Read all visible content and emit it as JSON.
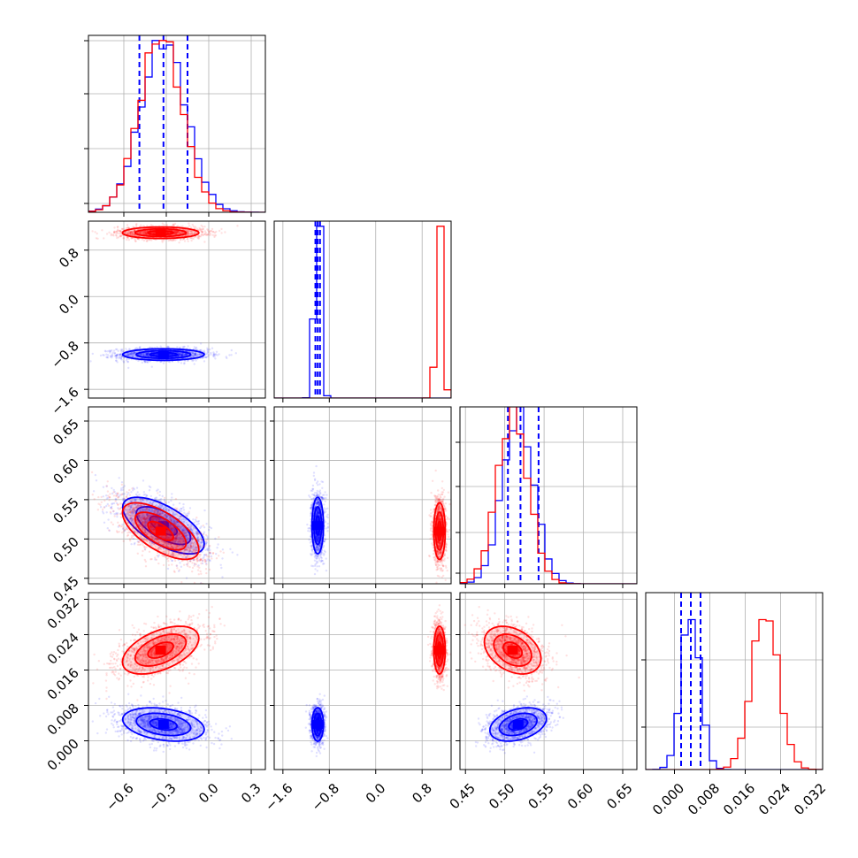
{
  "chart_data": {
    "type": "corner",
    "colors": {
      "blue": "#0000ff",
      "red": "#ff0000"
    },
    "params": [
      {
        "range": [
          -0.85,
          0.4
        ],
        "ticks": [
          -0.6,
          -0.3,
          0.0,
          0.3
        ],
        "tick_labels": [
          "−0.6",
          "−0.3",
          "0.0",
          "0.3"
        ]
      },
      {
        "range": [
          -1.75,
          1.3
        ],
        "ticks": [
          -1.6,
          -0.8,
          0.0,
          0.8
        ],
        "tick_labels": [
          "−1.6",
          "−0.8",
          "0.0",
          "0.8"
        ]
      },
      {
        "range": [
          0.443,
          0.668
        ],
        "ticks": [
          0.45,
          0.5,
          0.55,
          0.6,
          0.65
        ],
        "tick_labels": [
          "0.45",
          "0.50",
          "0.55",
          "0.60",
          "0.65"
        ]
      },
      {
        "range": [
          -0.0065,
          0.0335
        ],
        "ticks": [
          0.0,
          0.008,
          0.016,
          0.024,
          0.032
        ],
        "tick_labels": [
          "0.000",
          "0.008",
          "0.016",
          "0.024",
          "0.032"
        ]
      }
    ],
    "series": [
      {
        "color": "blue",
        "means": [
          -0.32,
          -1.0,
          0.517,
          0.0037
        ],
        "sigmas": [
          0.16,
          0.055,
          0.02,
          0.0021
        ],
        "quantiles": [
          [
            -0.49,
            -0.32,
            -0.15
          ],
          [
            -1.04,
            -1.0,
            -0.96
          ],
          [
            0.504,
            0.52,
            0.543
          ],
          [
            0.0015,
            0.0037,
            0.0059
          ]
        ]
      },
      {
        "color": "red",
        "means": [
          -0.34,
          1.1,
          0.51,
          0.0205
        ],
        "sigmas": [
          0.15,
          0.055,
          0.02,
          0.003
        ],
        "quantiles": []
      }
    ],
    "correlations": {
      "blue": {
        "0-2": -0.65,
        "0-3": -0.3,
        "2-3": 0.35
      },
      "red": {
        "0-2": -0.65,
        "0-3": 0.5,
        "2-3": -0.35
      }
    },
    "grid": true
  }
}
